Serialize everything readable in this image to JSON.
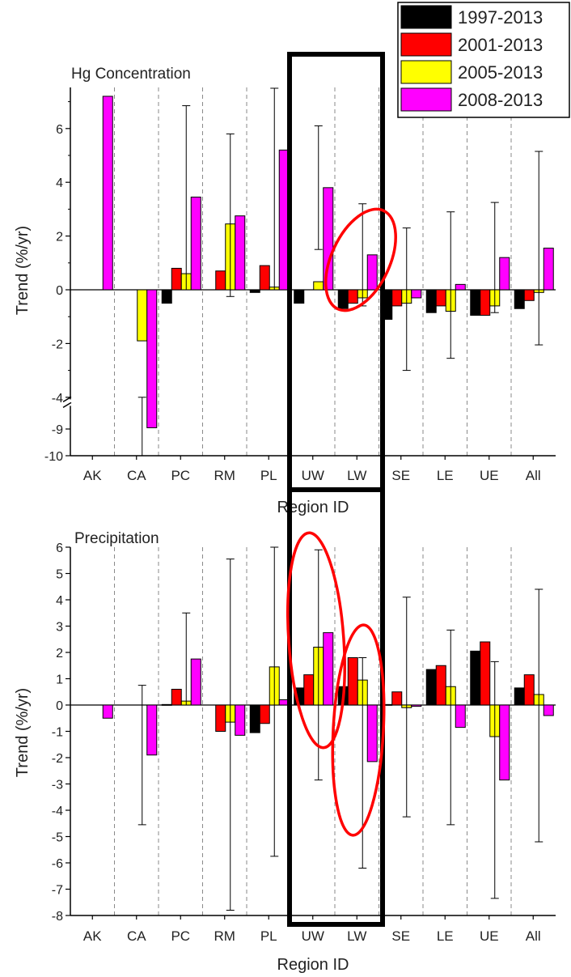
{
  "legend": [
    {
      "label": "1997-2013",
      "color": "#000000"
    },
    {
      "label": "2001-2013",
      "color": "#ff0000"
    },
    {
      "label": "2005-2013",
      "color": "#ffff00"
    },
    {
      "label": "2008-2013",
      "color": "#ff00ff"
    }
  ],
  "chart_data": [
    {
      "type": "bar",
      "title": "Hg Concentration",
      "xlabel": "Region ID",
      "ylabel": "Trend (%/yr)",
      "categories": [
        "AK",
        "CA",
        "PC",
        "RM",
        "PL",
        "UW",
        "LW",
        "SE",
        "LE",
        "UE",
        "All"
      ],
      "axis_break": [
        -4,
        -9
      ],
      "ylim": [
        -10,
        7.5
      ],
      "yticks": [
        "6",
        "4",
        "2",
        "0",
        "-2",
        "-4",
        "-9",
        "-10"
      ],
      "series": [
        {
          "name": "1997-2013",
          "values": [
            null,
            null,
            -0.5,
            null,
            -0.1,
            -0.5,
            -0.7,
            -1.1,
            -0.85,
            -0.95,
            -0.7
          ]
        },
        {
          "name": "2001-2013",
          "values": [
            null,
            null,
            0.8,
            0.7,
            0.9,
            null,
            -0.5,
            -0.6,
            -0.6,
            -0.95,
            -0.4
          ]
        },
        {
          "name": "2005-2013",
          "values": [
            null,
            -1.9,
            0.6,
            2.45,
            0.1,
            0.3,
            -0.3,
            -0.5,
            -0.8,
            -0.6,
            -0.1
          ]
        },
        {
          "name": "2008-2013",
          "values": [
            7.2,
            -8.8,
            3.45,
            2.75,
            5.2,
            3.8,
            1.3,
            -0.3,
            0.2,
            1.2,
            1.55
          ]
        }
      ],
      "error_bars": [
        {
          "category": "CA",
          "low": -10,
          "high": -4
        },
        {
          "category": "PC",
          "low": 0,
          "high": 6.85
        },
        {
          "category": "RM",
          "low": -0.25,
          "high": 5.8
        },
        {
          "category": "PL",
          "low": 0,
          "high": 7.5
        },
        {
          "category": "UW",
          "low": 1.5,
          "high": 6.1
        },
        {
          "category": "LW",
          "low": -0.6,
          "high": 3.2
        },
        {
          "category": "SE",
          "low": -3.0,
          "high": 2.3
        },
        {
          "category": "LE",
          "low": -2.55,
          "high": 2.9
        },
        {
          "category": "UE",
          "low": -0.85,
          "high": 3.25
        },
        {
          "category": "All",
          "low": -2.05,
          "high": 5.15
        }
      ]
    },
    {
      "type": "bar",
      "title": "Precipitation",
      "xlabel": "Region ID",
      "ylabel": "Trend (%/yr)",
      "categories": [
        "AK",
        "CA",
        "PC",
        "RM",
        "PL",
        "UW",
        "LW",
        "SE",
        "LE",
        "UE",
        "All"
      ],
      "ylim": [
        -8,
        6
      ],
      "yticks": [
        "6",
        "5",
        "4",
        "3",
        "2",
        "1",
        "0",
        "-1",
        "-2",
        "-3",
        "-4",
        "-5",
        "-6",
        "-7",
        "-8"
      ],
      "series": [
        {
          "name": "1997-2013",
          "values": [
            null,
            null,
            0.02,
            null,
            -1.05,
            0.65,
            0.7,
            0.02,
            1.35,
            2.05,
            0.65
          ]
        },
        {
          "name": "2001-2013",
          "values": [
            null,
            null,
            0.6,
            -1.0,
            -0.7,
            1.15,
            1.8,
            0.5,
            1.5,
            2.4,
            1.15
          ]
        },
        {
          "name": "2005-2013",
          "values": [
            null,
            null,
            0.15,
            -0.65,
            1.45,
            2.2,
            0.95,
            -0.1,
            0.7,
            -1.2,
            0.4
          ]
        },
        {
          "name": "2008-2013",
          "values": [
            -0.5,
            -1.9,
            1.75,
            -1.15,
            0.2,
            2.75,
            -2.15,
            -0.05,
            -0.85,
            -2.85,
            -0.4
          ]
        }
      ],
      "error_bars": [
        {
          "category": "CA",
          "low": -4.55,
          "high": 0.75
        },
        {
          "category": "PC",
          "low": 0,
          "high": 3.5
        },
        {
          "category": "RM",
          "low": -7.8,
          "high": 5.55
        },
        {
          "category": "PL",
          "low": -5.75,
          "high": 6.0
        },
        {
          "category": "UW",
          "low": -2.85,
          "high": 5.9
        },
        {
          "category": "LW",
          "low": -6.2,
          "high": 1.8
        },
        {
          "category": "SE",
          "low": -4.25,
          "high": 4.1
        },
        {
          "category": "LE",
          "low": -4.55,
          "high": 2.85
        },
        {
          "category": "UE",
          "low": -7.35,
          "high": 1.65
        },
        {
          "category": "All",
          "low": -5.2,
          "high": 4.4
        }
      ]
    }
  ],
  "annotations": {
    "highlight_box_categories": [
      "UW",
      "LW"
    ],
    "highlight_color": "#ff0000"
  }
}
